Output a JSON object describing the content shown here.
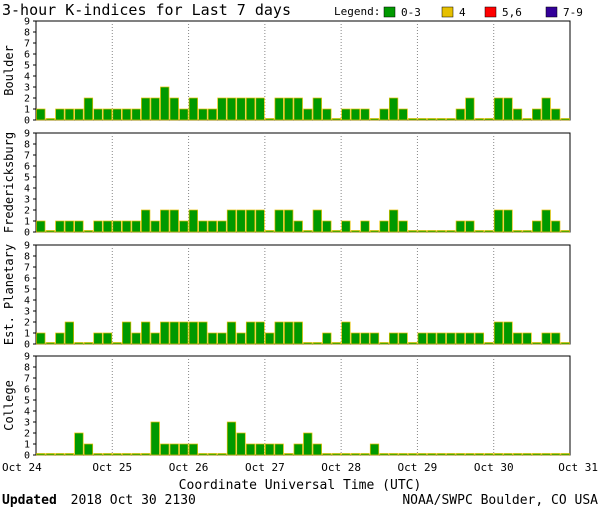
{
  "title": "3-hour K-indices for Last 7 days",
  "legend": {
    "label": "Legend:",
    "items": [
      {
        "label": "0-3",
        "color": "#009900"
      },
      {
        "label": "4",
        "color": "#e6c000"
      },
      {
        "label": "5,6",
        "color": "#ff0000"
      },
      {
        "label": "7-9",
        "color": "#330099"
      }
    ]
  },
  "footer": {
    "updated_label": "Updated",
    "updated_value": "2018 Oct 30 2130",
    "source": "NOAA/SWPC Boulder, CO USA"
  },
  "chart_data": {
    "type": "bar",
    "xlabel": "Coordinate Universal Time (UTC)",
    "x_ticks": [
      "Oct 24",
      "Oct 25",
      "Oct 26",
      "Oct 27",
      "Oct 28",
      "Oct 29",
      "Oct 30",
      "Oct 31"
    ],
    "ylim": [
      0,
      9
    ],
    "y_ticks": [
      "0",
      "1",
      "2",
      "3",
      "4",
      "5",
      "6",
      "7",
      "8",
      "9"
    ],
    "bars_per_day": 8,
    "series": [
      {
        "name": "Boulder",
        "values": [
          1,
          0,
          1,
          1,
          1,
          2,
          1,
          1,
          1,
          1,
          1,
          2,
          2,
          3,
          2,
          1,
          2,
          1,
          1,
          2,
          2,
          2,
          2,
          2,
          0,
          2,
          2,
          2,
          1,
          2,
          1,
          0,
          1,
          1,
          1,
          0,
          1,
          2,
          1,
          0,
          0,
          0,
          0,
          0,
          1,
          2,
          0,
          0,
          2,
          2,
          1,
          0,
          1,
          2,
          1,
          0
        ]
      },
      {
        "name": "Fredericksburg",
        "values": [
          1,
          0,
          1,
          1,
          1,
          0,
          1,
          1,
          1,
          1,
          1,
          2,
          1,
          2,
          2,
          1,
          2,
          1,
          1,
          1,
          2,
          2,
          2,
          2,
          0,
          2,
          2,
          1,
          0,
          2,
          1,
          0,
          1,
          0,
          1,
          0,
          1,
          2,
          1,
          0,
          0,
          0,
          0,
          0,
          1,
          1,
          0,
          0,
          2,
          2,
          0,
          0,
          1,
          2,
          1,
          0
        ]
      },
      {
        "name": "Est. Planetary",
        "values": [
          1,
          0,
          1,
          2,
          0,
          0,
          1,
          1,
          0,
          2,
          1,
          2,
          1,
          2,
          2,
          2,
          2,
          2,
          1,
          1,
          2,
          1,
          2,
          2,
          1,
          2,
          2,
          2,
          0,
          0,
          1,
          0,
          2,
          1,
          1,
          1,
          0,
          1,
          1,
          0,
          1,
          1,
          1,
          1,
          1,
          1,
          1,
          0,
          2,
          2,
          1,
          1,
          0,
          1,
          1,
          0
        ]
      },
      {
        "name": "College",
        "values": [
          0,
          0,
          0,
          0,
          2,
          1,
          0,
          0,
          0,
          0,
          0,
          0,
          3,
          1,
          1,
          1,
          1,
          0,
          0,
          0,
          3,
          2,
          1,
          1,
          1,
          1,
          0,
          1,
          2,
          1,
          0,
          0,
          0,
          0,
          0,
          1,
          0,
          0,
          0,
          0,
          0,
          0,
          0,
          0,
          0,
          0,
          0,
          0,
          0,
          0,
          0,
          0,
          0,
          0,
          0,
          0
        ]
      }
    ]
  }
}
